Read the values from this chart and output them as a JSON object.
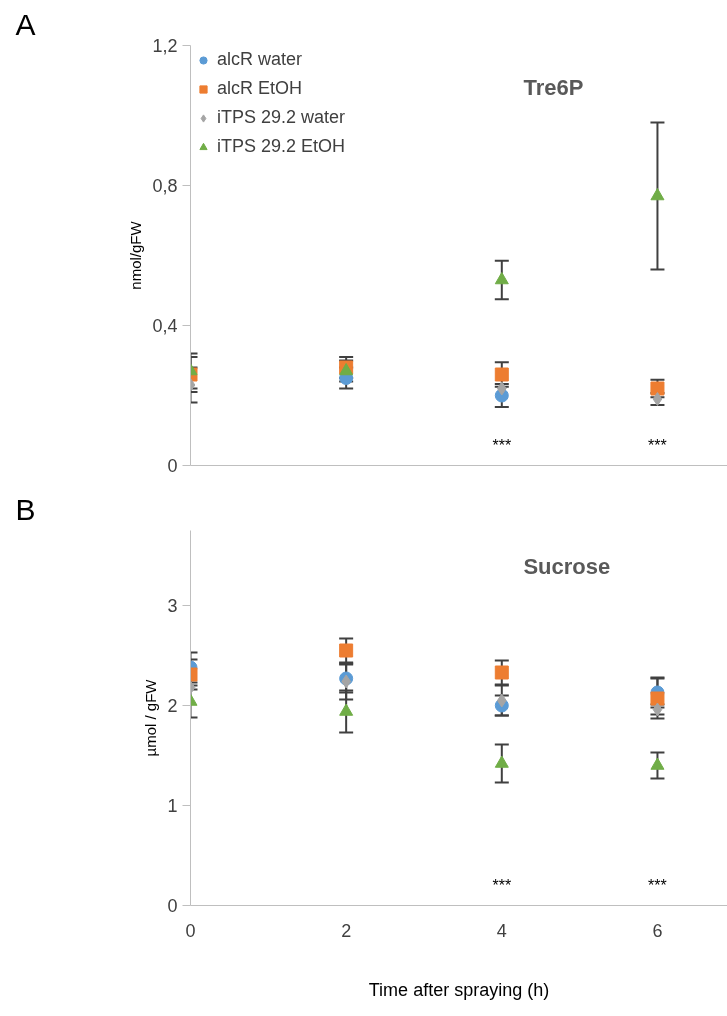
{
  "chart_data": [
    {
      "type": "scatter",
      "title": "Tre6P",
      "ylabel": "nmol/gFW",
      "annotations": [
        "A",
        "***",
        "***"
      ],
      "x": [
        0,
        2,
        4,
        6
      ],
      "xlim": [
        0,
        6.9
      ],
      "xticks": [
        0,
        2,
        4,
        6
      ],
      "ylim": [
        0,
        1.2
      ],
      "yticks": [
        0,
        {
          "value": 0.4,
          "label": "0,4"
        },
        {
          "value": 0.8,
          "label": "0,8"
        },
        {
          "value": 1.2,
          "label": "1,2"
        }
      ],
      "tick_labels": "y",
      "legend": "top left",
      "grid": false,
      "series": [
        {
          "name": "alcR water",
          "color": "#5b9bd5",
          "marker": "circle",
          "values": [
            null,
            0.25,
            0.2,
            null
          ],
          "errors": [
            null,
            0.03,
            0.033,
            null
          ]
        },
        {
          "name": "alcR EtOH",
          "color": "#ed7d31",
          "marker": "square",
          "values": [
            0.26,
            0.28,
            0.26,
            0.22
          ],
          "errors": [
            0.05,
            0.03,
            0.035,
            0.025
          ]
        },
        {
          "name": "iTPS 29.2 water",
          "color": "#a5a5a5",
          "marker": "diamond",
          "values": [
            0.23,
            null,
            0.22,
            0.19
          ],
          "errors": [
            0.05,
            null,
            null,
            0.017
          ]
        },
        {
          "name": "iTPS 29.2 EtOH",
          "color": "#70ad47",
          "marker": "triangle",
          "values": [
            0.27,
            0.27,
            0.53,
            0.77
          ],
          "errors": [
            0.05,
            0.03,
            0.055,
            0.21
          ]
        }
      ]
    },
    {
      "type": "scatter",
      "title": "Sucrose",
      "ylabel": "µmol / gFW",
      "xlabel": "Time after spraying (h)",
      "annotations": [
        "B",
        "***",
        "***"
      ],
      "x": [
        0,
        2,
        4,
        6
      ],
      "xlim": [
        0,
        6.9
      ],
      "xticks": [
        0,
        2,
        4,
        6
      ],
      "ylim": [
        0,
        3.75
      ],
      "yticks": [
        0,
        1,
        2,
        3
      ],
      "grid": false,
      "series": [
        {
          "color": "#5b9bd5",
          "marker": "circle",
          "values": [
            2.38,
            2.27,
            2.0,
            2.13
          ],
          "errors": [
            0.15,
            0.14,
            0.1,
            0.15
          ]
        },
        {
          "color": "#ed7d31",
          "marker": "square",
          "values": [
            2.31,
            2.55,
            2.33,
            2.07
          ],
          "errors": [
            0.15,
            0.12,
            0.12,
            0.2
          ]
        },
        {
          "color": "#a5a5a5",
          "marker": "diamond",
          "values": [
            2.18,
            2.24,
            2.05,
            1.96
          ],
          "errors": [
            null,
            0.18,
            0.15,
            0.05
          ]
        },
        {
          "color": "#70ad47",
          "marker": "triangle",
          "values": [
            2.04,
            1.94,
            1.42,
            1.4
          ],
          "errors": [
            0.16,
            0.21,
            0.19,
            0.13
          ]
        }
      ]
    }
  ]
}
